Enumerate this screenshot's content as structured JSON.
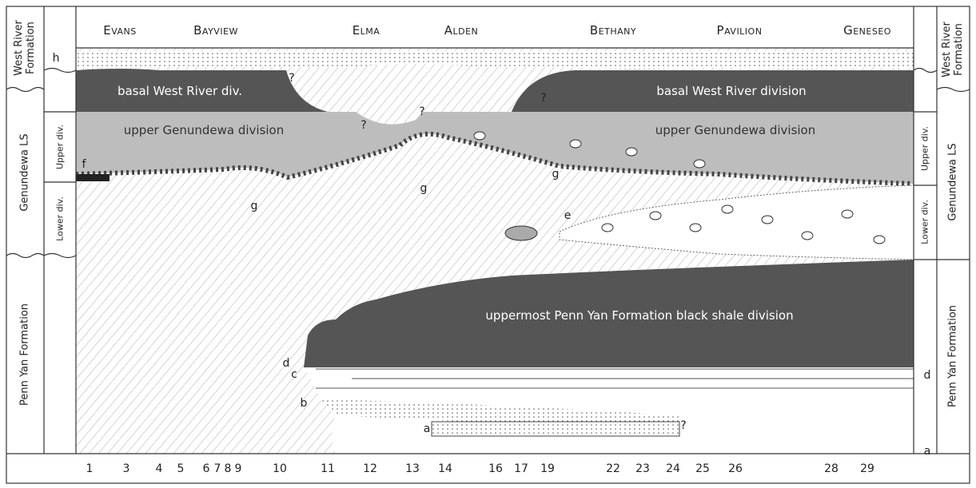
{
  "header": {
    "towns": [
      "Evans",
      "Bayview",
      "Elma",
      "Alden",
      "Bethany",
      "Pavilion",
      "Geneseo"
    ]
  },
  "left_column": {
    "formations": [
      "West River Formation",
      "Genundewa LS",
      "Penn Yan Formation"
    ],
    "divisions": [
      "Upper div.",
      "Lower div."
    ],
    "letters": [
      "h"
    ]
  },
  "right_column": {
    "formations": [
      "West River Formation",
      "Genundewa LS",
      "Penn Yan Formation"
    ],
    "divisions": [
      "Upper div.",
      "Lower div."
    ],
    "letters": [
      "d",
      "a"
    ]
  },
  "units": [
    "basal West River div.",
    "basal West River division",
    "upper Genundewa division",
    "upper Genundewa division",
    "uppermost Penn Yan Formation black shale division"
  ],
  "markers": [
    "f",
    "g",
    "g",
    "g",
    "e",
    "d",
    "c",
    "b",
    "a",
    "?",
    "?",
    "?",
    "?",
    "?"
  ],
  "localities": [
    "1",
    "3",
    "4",
    "5",
    "6",
    "7",
    "8",
    "9",
    "10",
    "11",
    "12",
    "13",
    "14",
    "16",
    "17",
    "19",
    "22",
    "23",
    "24",
    "25",
    "26",
    "28",
    "29"
  ]
}
